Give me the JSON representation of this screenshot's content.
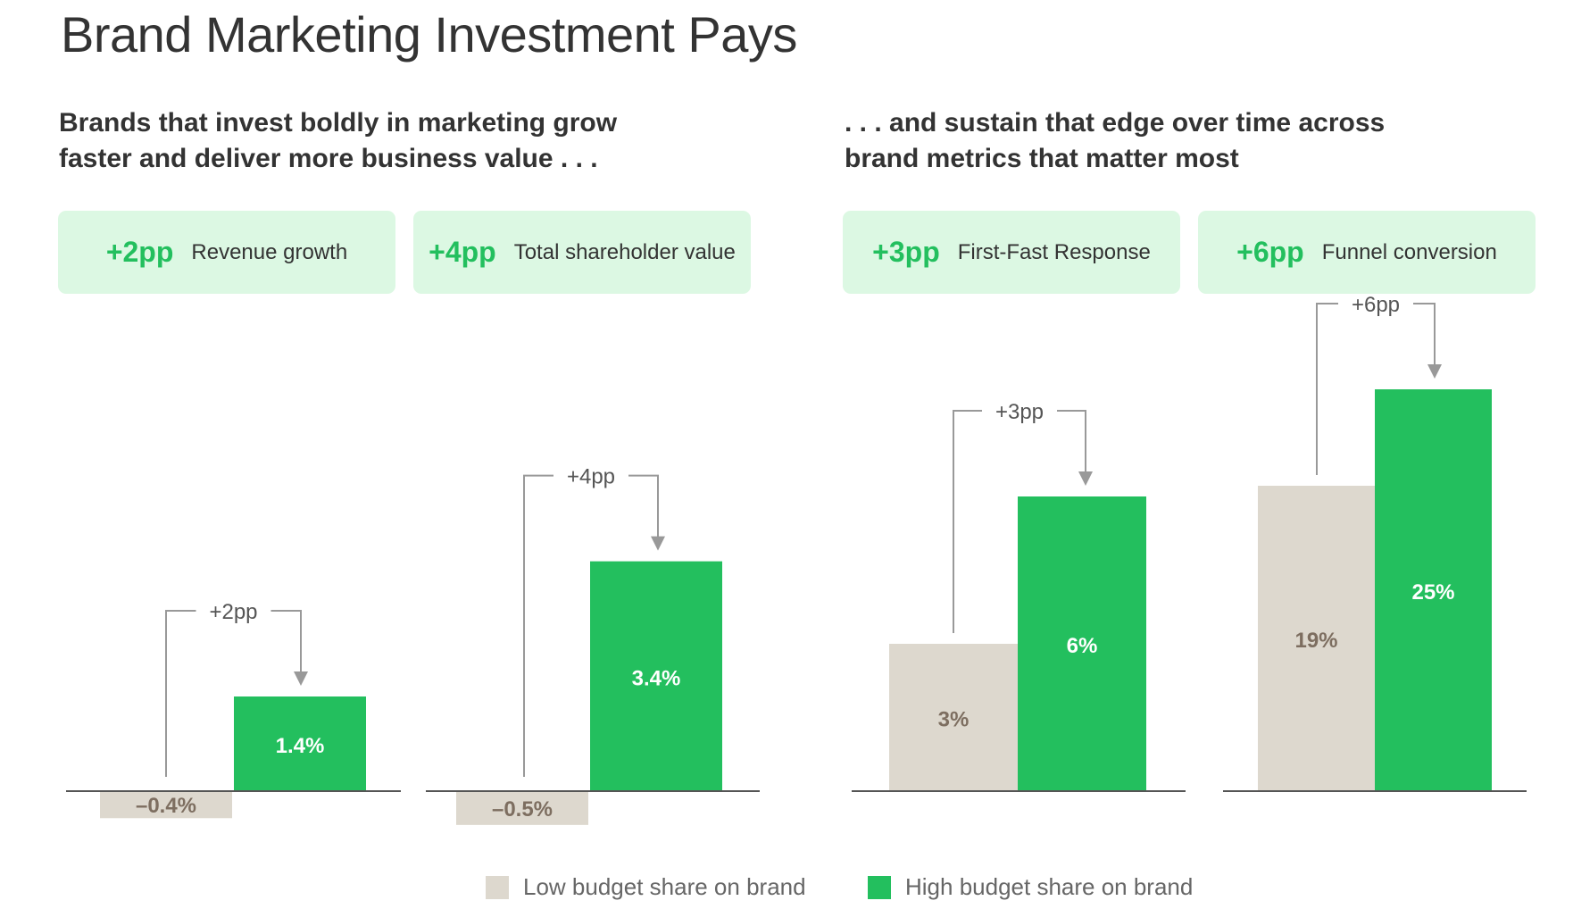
{
  "title": "Brand Marketing Investment Pays",
  "subheads": {
    "left": [
      "Brands that invest boldly in marketing grow",
      "faster and deliver more business value . . ."
    ],
    "right": [
      ". . . and sustain that edge over time across",
      "brand metrics that matter most"
    ]
  },
  "kpis": [
    {
      "value": "+2pp",
      "label": "Revenue growth"
    },
    {
      "value": "+4pp",
      "label": "Total shareholder value"
    },
    {
      "value": "+3pp",
      "label": "First-Fast Response"
    },
    {
      "value": "+6pp",
      "label": "Funnel conversion"
    }
  ],
  "legend": {
    "low": "Low budget share on brand",
    "high": "High budget share on brand"
  },
  "colors": {
    "low": "#ddd8ce",
    "high": "#23bf5e",
    "kpi_bg": "#dcf8e3",
    "axis": "#555555",
    "bracket": "#999999"
  },
  "chart_data": [
    {
      "type": "bar",
      "categories": [
        "Revenue growth"
      ],
      "series": [
        {
          "name": "Low budget share on brand",
          "values": [
            -0.4
          ],
          "labels": [
            "–0.4%"
          ]
        },
        {
          "name": "High budget share on brand",
          "values": [
            1.4
          ],
          "labels": [
            "1.4%"
          ]
        }
      ],
      "annotation": "+2pp"
    },
    {
      "type": "bar",
      "categories": [
        "Total shareholder value"
      ],
      "series": [
        {
          "name": "Low budget share on brand",
          "values": [
            -0.5
          ],
          "labels": [
            "–0.5%"
          ]
        },
        {
          "name": "High budget share on brand",
          "values": [
            3.4
          ],
          "labels": [
            "3.4%"
          ]
        }
      ],
      "annotation": "+4pp"
    },
    {
      "type": "bar",
      "categories": [
        "First-Fast Response"
      ],
      "series": [
        {
          "name": "Low budget share on brand",
          "values": [
            3
          ],
          "labels": [
            "3%"
          ]
        },
        {
          "name": "High budget share on brand",
          "values": [
            6
          ],
          "labels": [
            "6%"
          ]
        }
      ],
      "annotation": "+3pp"
    },
    {
      "type": "bar",
      "categories": [
        "Funnel conversion"
      ],
      "series": [
        {
          "name": "Low budget share on brand",
          "values": [
            19
          ],
          "labels": [
            "19%"
          ]
        },
        {
          "name": "High budget share on brand",
          "values": [
            25
          ],
          "labels": [
            "25%"
          ]
        }
      ],
      "annotation": "+6pp"
    }
  ]
}
